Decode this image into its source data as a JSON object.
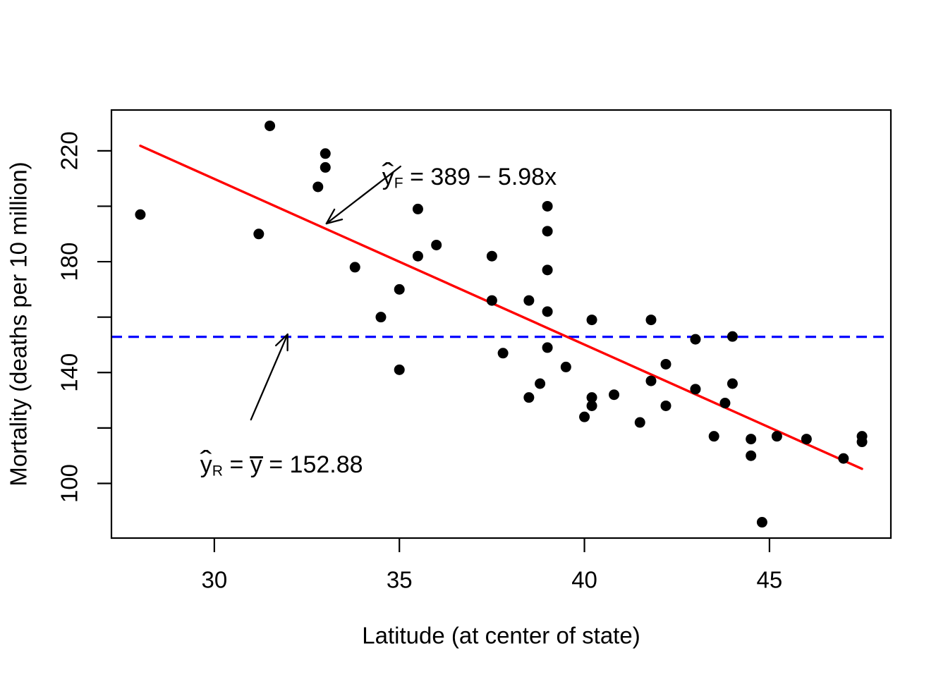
{
  "figure": {
    "background": "#ffffff"
  },
  "annotations": {
    "fitted": {
      "hat": "ˆ",
      "base": "y",
      "sub": "F",
      "eq": " = 389 − 5.98x"
    },
    "reduced": {
      "hat": "ˆ",
      "base": "y",
      "sub": "R",
      "eq1": " = ",
      "ybar": "y",
      "eq2": " = 152.88"
    }
  },
  "chart_data": {
    "type": "scatter",
    "title": "",
    "xlabel": "Latitude (at center of state)",
    "ylabel": "Mortality (deaths per 10 million)",
    "xlim": [
      27.22,
      48.28
    ],
    "ylim": [
      80.28,
      234.72
    ],
    "x_ticks": [
      30,
      35,
      40,
      45
    ],
    "y_ticks": [
      100,
      120,
      140,
      160,
      180,
      200,
      220
    ],
    "y_tick_labels": [
      100,
      140,
      180,
      220
    ],
    "grid": false,
    "point_color": "#000000",
    "points": [
      [
        28.0,
        197
      ],
      [
        31.2,
        190
      ],
      [
        31.5,
        229
      ],
      [
        32.8,
        207
      ],
      [
        33.0,
        219
      ],
      [
        33.0,
        214
      ],
      [
        33.8,
        178
      ],
      [
        34.5,
        160
      ],
      [
        35.0,
        170
      ],
      [
        35.0,
        141
      ],
      [
        35.5,
        199
      ],
      [
        35.5,
        182
      ],
      [
        36.0,
        186
      ],
      [
        37.5,
        182
      ],
      [
        37.5,
        166
      ],
      [
        37.8,
        147
      ],
      [
        38.5,
        166
      ],
      [
        38.5,
        131
      ],
      [
        38.8,
        136
      ],
      [
        39.0,
        149
      ],
      [
        39.0,
        200
      ],
      [
        39.0,
        177
      ],
      [
        39.0,
        162
      ],
      [
        39.0,
        191
      ],
      [
        39.5,
        142
      ],
      [
        40.0,
        124
      ],
      [
        40.2,
        128
      ],
      [
        40.2,
        159
      ],
      [
        40.2,
        131
      ],
      [
        40.8,
        132
      ],
      [
        41.5,
        122
      ],
      [
        41.8,
        159
      ],
      [
        41.8,
        137
      ],
      [
        42.2,
        128
      ],
      [
        42.2,
        143
      ],
      [
        43.0,
        152
      ],
      [
        43.0,
        134
      ],
      [
        43.5,
        117
      ],
      [
        43.8,
        129
      ],
      [
        44.0,
        136
      ],
      [
        44.0,
        153
      ],
      [
        44.5,
        116
      ],
      [
        44.5,
        110
      ],
      [
        44.8,
        86
      ],
      [
        45.2,
        117
      ],
      [
        46.0,
        116
      ],
      [
        47.0,
        109
      ],
      [
        47.5,
        115
      ],
      [
        47.5,
        117
      ]
    ],
    "regression_line": {
      "label": "yF_hat = 389 - 5.98x",
      "intercept": 389.19,
      "slope": -5.9776,
      "x_start": 28.0,
      "x_end": 47.5,
      "color": "#ff0000"
    },
    "mean_line": {
      "label": "yR_hat = y_bar = 152.88",
      "y": 152.88,
      "style": "dashed",
      "color": "#0000ff"
    },
    "arrows": [
      {
        "from": [
          35.03,
          214.37
        ],
        "to": [
          33.03,
          193.76
        ]
      },
      {
        "from": [
          30.99,
          123.0
        ],
        "to": [
          31.98,
          153.8
        ]
      }
    ]
  }
}
